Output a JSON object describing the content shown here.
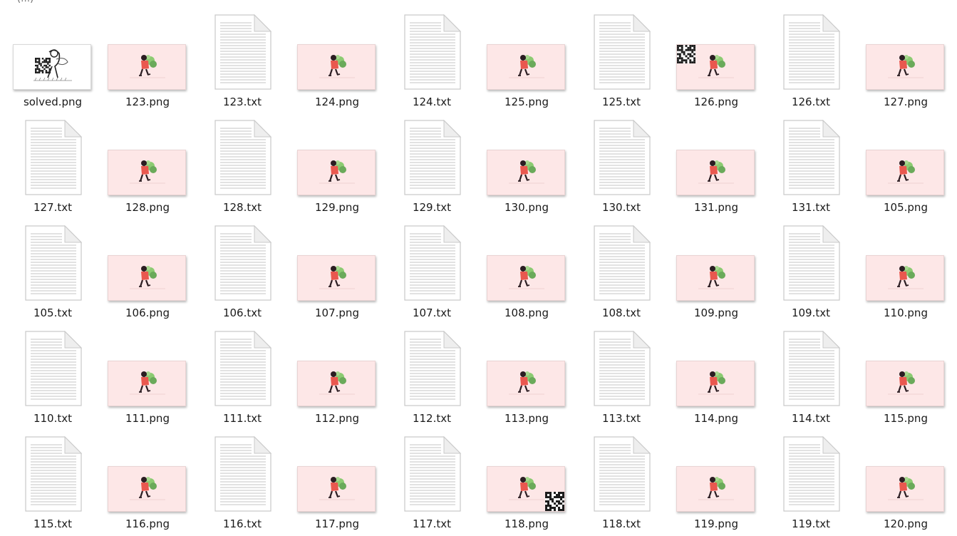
{
  "header": {
    "fragment": "(…)"
  },
  "files": [
    {
      "name": "solved.png",
      "kind": "solved",
      "icon": "image-thumbnail-icon"
    },
    {
      "name": "123.png",
      "kind": "png",
      "icon": "image-thumbnail-icon"
    },
    {
      "name": "123.txt",
      "kind": "txt",
      "icon": "text-file-icon"
    },
    {
      "name": "124.png",
      "kind": "png",
      "icon": "image-thumbnail-icon"
    },
    {
      "name": "124.txt",
      "kind": "txt",
      "icon": "text-file-icon"
    },
    {
      "name": "125.png",
      "kind": "png",
      "icon": "image-thumbnail-icon"
    },
    {
      "name": "125.txt",
      "kind": "txt",
      "icon": "text-file-icon"
    },
    {
      "name": "126.png",
      "kind": "png",
      "icon": "image-thumbnail-icon",
      "qr": "top-left"
    },
    {
      "name": "126.txt",
      "kind": "txt",
      "icon": "text-file-icon"
    },
    {
      "name": "127.png",
      "kind": "png",
      "icon": "image-thumbnail-icon"
    },
    {
      "name": "127.txt",
      "kind": "txt",
      "icon": "text-file-icon"
    },
    {
      "name": "128.png",
      "kind": "png",
      "icon": "image-thumbnail-icon"
    },
    {
      "name": "128.txt",
      "kind": "txt",
      "icon": "text-file-icon"
    },
    {
      "name": "129.png",
      "kind": "png",
      "icon": "image-thumbnail-icon"
    },
    {
      "name": "129.txt",
      "kind": "txt",
      "icon": "text-file-icon"
    },
    {
      "name": "130.png",
      "kind": "png",
      "icon": "image-thumbnail-icon"
    },
    {
      "name": "130.txt",
      "kind": "txt",
      "icon": "text-file-icon"
    },
    {
      "name": "131.png",
      "kind": "png",
      "icon": "image-thumbnail-icon"
    },
    {
      "name": "131.txt",
      "kind": "txt",
      "icon": "text-file-icon"
    },
    {
      "name": "105.png",
      "kind": "png",
      "icon": "image-thumbnail-icon"
    },
    {
      "name": "105.txt",
      "kind": "txt",
      "icon": "text-file-icon"
    },
    {
      "name": "106.png",
      "kind": "png",
      "icon": "image-thumbnail-icon"
    },
    {
      "name": "106.txt",
      "kind": "txt",
      "icon": "text-file-icon"
    },
    {
      "name": "107.png",
      "kind": "png",
      "icon": "image-thumbnail-icon"
    },
    {
      "name": "107.txt",
      "kind": "txt",
      "icon": "text-file-icon"
    },
    {
      "name": "108.png",
      "kind": "png",
      "icon": "image-thumbnail-icon"
    },
    {
      "name": "108.txt",
      "kind": "txt",
      "icon": "text-file-icon"
    },
    {
      "name": "109.png",
      "kind": "png",
      "icon": "image-thumbnail-icon"
    },
    {
      "name": "109.txt",
      "kind": "txt",
      "icon": "text-file-icon"
    },
    {
      "name": "110.png",
      "kind": "png",
      "icon": "image-thumbnail-icon"
    },
    {
      "name": "110.txt",
      "kind": "txt",
      "icon": "text-file-icon"
    },
    {
      "name": "111.png",
      "kind": "png",
      "icon": "image-thumbnail-icon"
    },
    {
      "name": "111.txt",
      "kind": "txt",
      "icon": "text-file-icon"
    },
    {
      "name": "112.png",
      "kind": "png",
      "icon": "image-thumbnail-icon"
    },
    {
      "name": "112.txt",
      "kind": "txt",
      "icon": "text-file-icon"
    },
    {
      "name": "113.png",
      "kind": "png",
      "icon": "image-thumbnail-icon"
    },
    {
      "name": "113.txt",
      "kind": "txt",
      "icon": "text-file-icon"
    },
    {
      "name": "114.png",
      "kind": "png",
      "icon": "image-thumbnail-icon"
    },
    {
      "name": "114.txt",
      "kind": "txt",
      "icon": "text-file-icon"
    },
    {
      "name": "115.png",
      "kind": "png",
      "icon": "image-thumbnail-icon"
    },
    {
      "name": "115.txt",
      "kind": "txt",
      "icon": "text-file-icon"
    },
    {
      "name": "116.png",
      "kind": "png",
      "icon": "image-thumbnail-icon"
    },
    {
      "name": "116.txt",
      "kind": "txt",
      "icon": "text-file-icon"
    },
    {
      "name": "117.png",
      "kind": "png",
      "icon": "image-thumbnail-icon"
    },
    {
      "name": "117.txt",
      "kind": "txt",
      "icon": "text-file-icon"
    },
    {
      "name": "118.png",
      "kind": "png",
      "icon": "image-thumbnail-icon",
      "qr": "bottom-right"
    },
    {
      "name": "118.txt",
      "kind": "txt",
      "icon": "text-file-icon"
    },
    {
      "name": "119.png",
      "kind": "png",
      "icon": "image-thumbnail-icon",
      "selected": true
    },
    {
      "name": "119.txt",
      "kind": "txt",
      "icon": "text-file-icon"
    },
    {
      "name": "120.png",
      "kind": "png",
      "icon": "image-thumbnail-icon"
    }
  ],
  "colors": {
    "thumb_background": "#fde7e7",
    "figure_coat": "#e9584f",
    "figure_dark": "#2b1d22",
    "leaves": "#7fbf6a",
    "selection": "#cde8ff"
  }
}
